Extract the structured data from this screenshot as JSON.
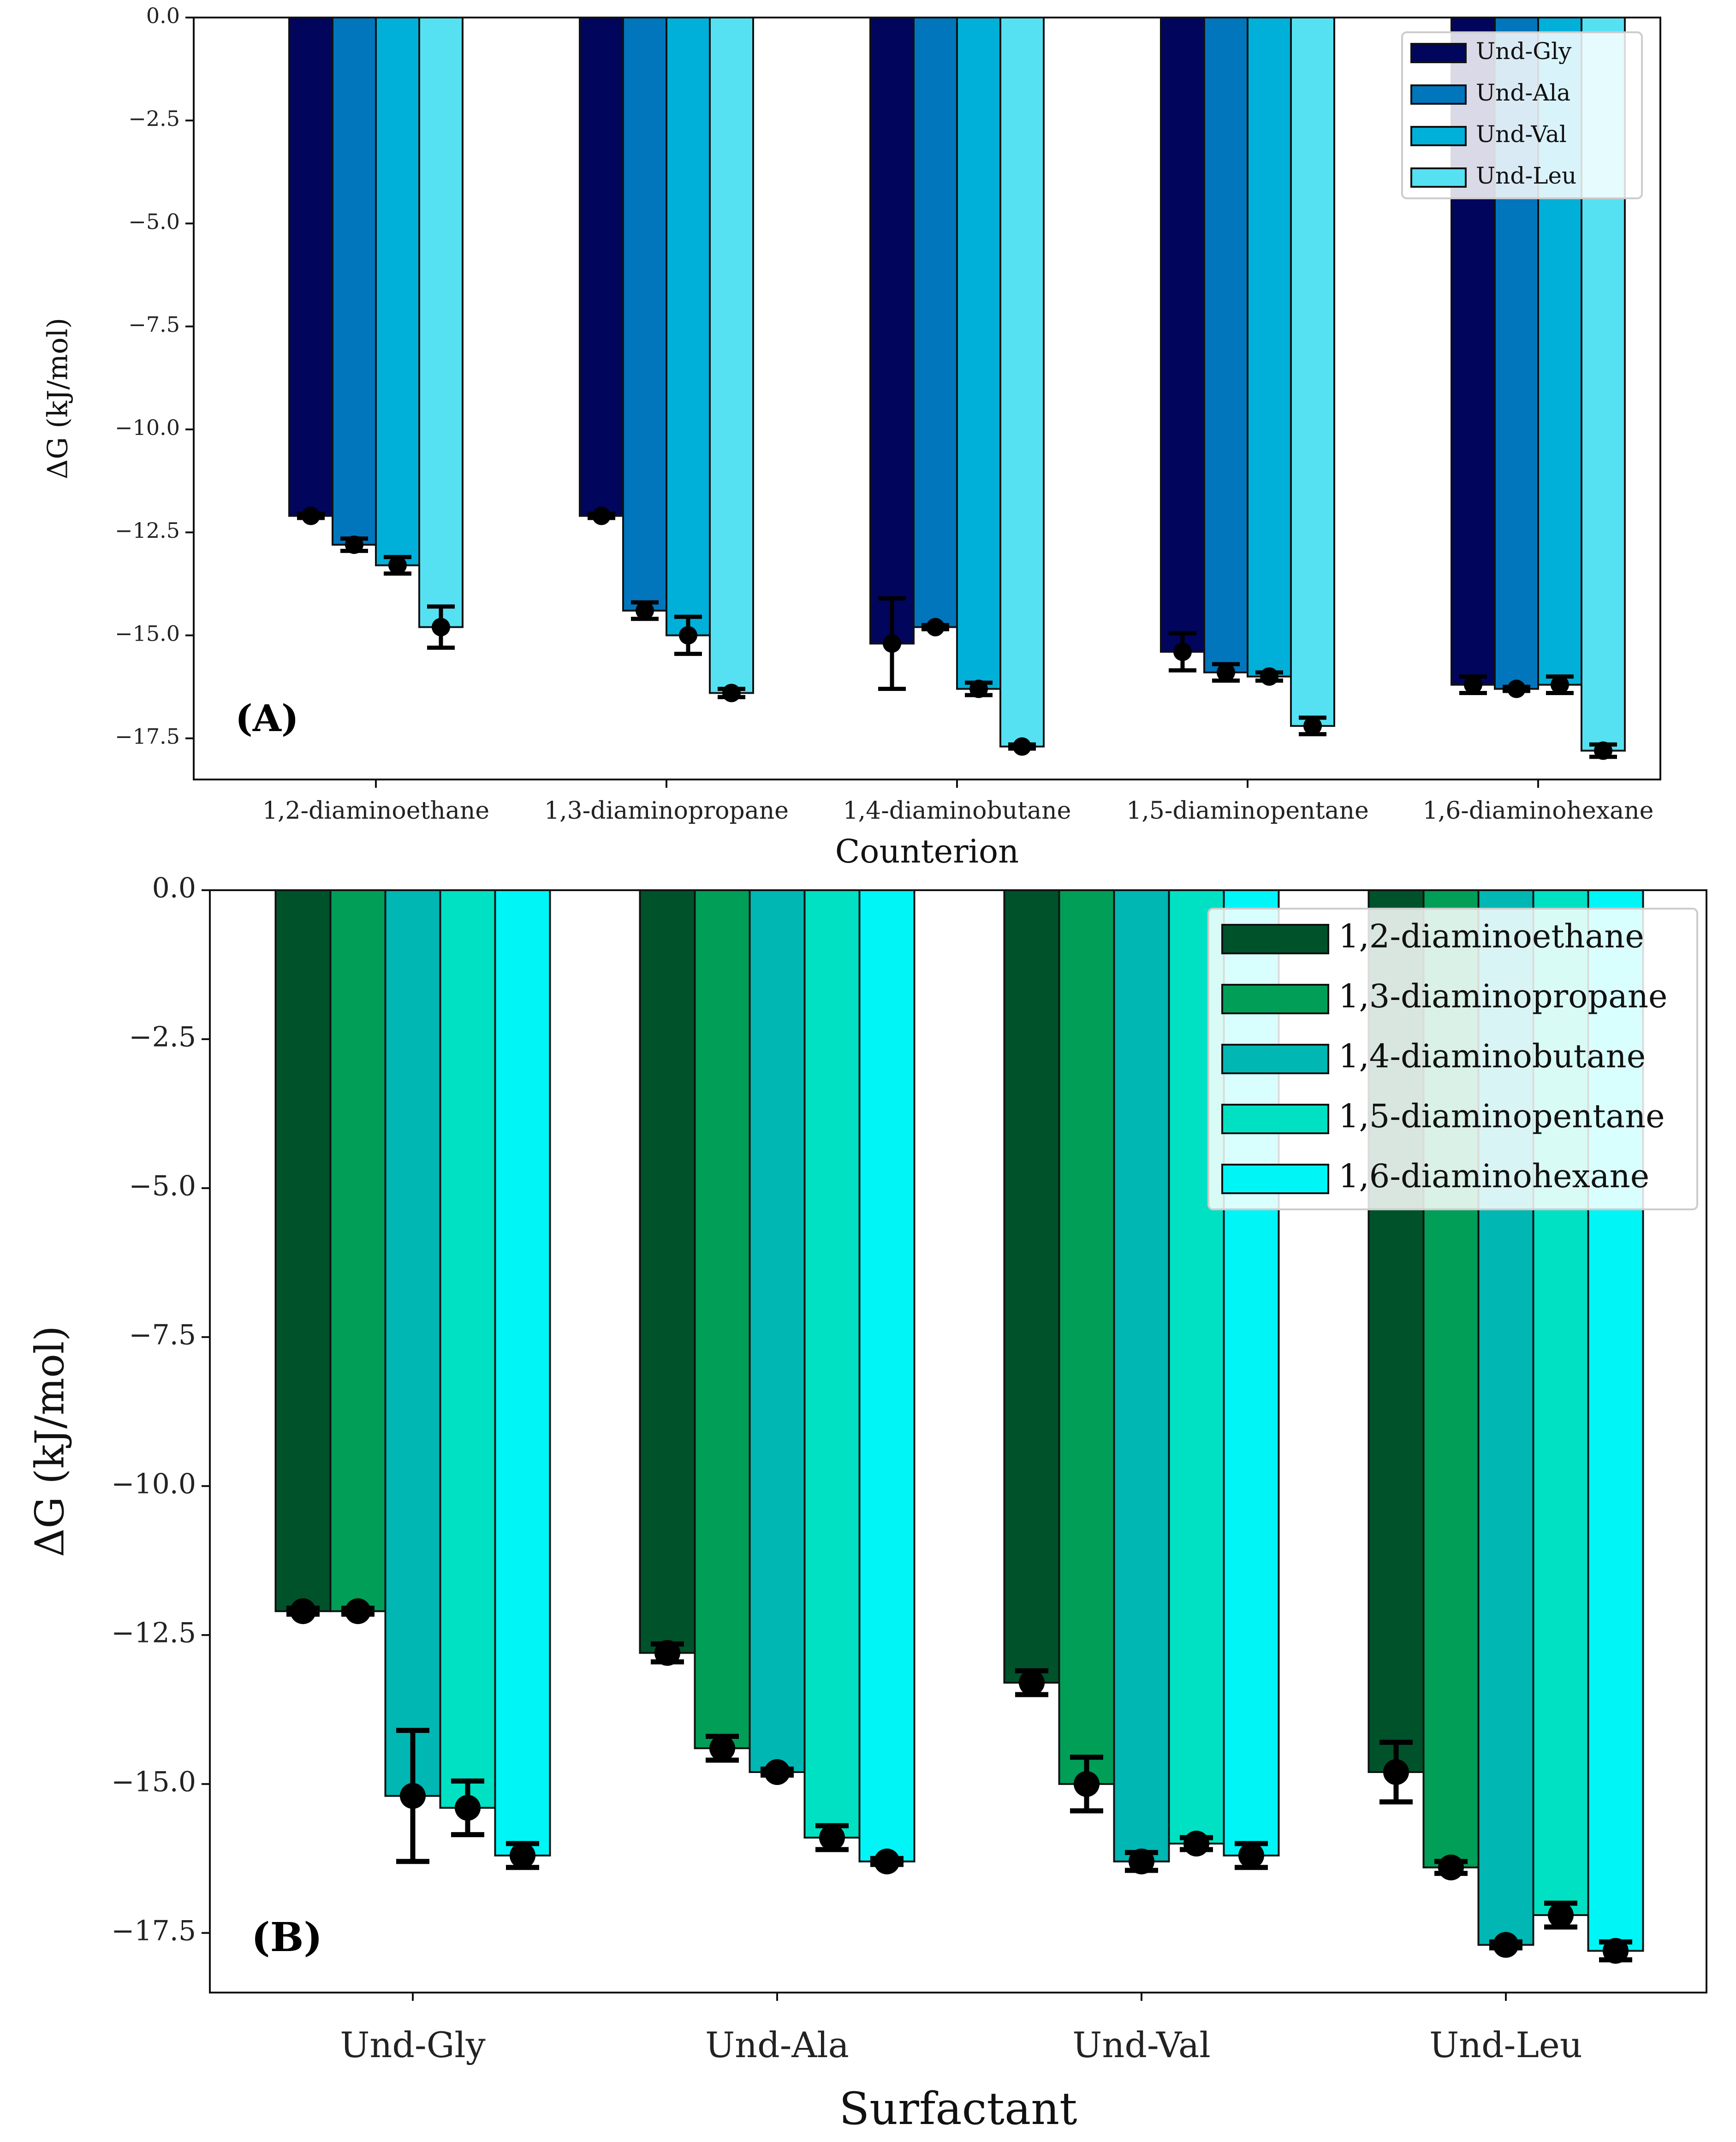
{
  "chart_data": [
    {
      "type": "bar",
      "panel_label": "(A)",
      "xlabel": "Counterion",
      "ylabel": "ΔG (kJ/mol)",
      "ylim": [
        -18.5,
        0.0
      ],
      "yticks": [
        0.0,
        -2.5,
        -5.0,
        -7.5,
        -10.0,
        -12.5,
        -15.0,
        -17.5
      ],
      "ytick_labels": [
        "0.0",
        "−2.5",
        "−5.0",
        "−7.5",
        "−10.0",
        "−12.5",
        "−15.0",
        "−17.5"
      ],
      "categories": [
        "1,2-diaminoethane",
        "1,3-diaminopropane",
        "1,4-diaminobutane",
        "1,5-diaminopentane",
        "1,6-diaminohexane"
      ],
      "legend_position": "top-right",
      "series": [
        {
          "name": "Und-Gly",
          "color": "#01055c",
          "values": [
            -12.1,
            -12.1,
            -15.2,
            -15.4,
            -16.2
          ],
          "errors": [
            0.05,
            0.05,
            1.1,
            0.45,
            0.2
          ]
        },
        {
          "name": "Und-Ala",
          "color": "#0176bd",
          "values": [
            -12.8,
            -14.4,
            -14.8,
            -15.9,
            -16.3
          ],
          "errors": [
            0.15,
            0.2,
            0.05,
            0.2,
            0.05
          ]
        },
        {
          "name": "Und-Val",
          "color": "#00b0d9",
          "values": [
            -13.3,
            -15.0,
            -16.3,
            -16.0,
            -16.2
          ],
          "errors": [
            0.2,
            0.45,
            0.15,
            0.1,
            0.2
          ]
        },
        {
          "name": "Und-Leu",
          "color": "#56e1f2",
          "values": [
            -14.8,
            -16.4,
            -17.7,
            -17.2,
            -17.8
          ],
          "errors": [
            0.5,
            0.1,
            0.05,
            0.2,
            0.15
          ]
        }
      ]
    },
    {
      "type": "bar",
      "panel_label": "(B)",
      "xlabel": "Surfactant",
      "ylabel": "ΔG (kJ/mol)",
      "ylim": [
        -18.5,
        0.0
      ],
      "yticks": [
        0.0,
        -2.5,
        -5.0,
        -7.5,
        -10.0,
        -12.5,
        -15.0,
        -17.5
      ],
      "ytick_labels": [
        "0.0",
        "−2.5",
        "−5.0",
        "−7.5",
        "−10.0",
        "−12.5",
        "−15.0",
        "−17.5"
      ],
      "categories": [
        "Und-Gly",
        "Und-Ala",
        "Und-Val",
        "Und-Leu"
      ],
      "legend_position": "top-right",
      "series": [
        {
          "name": "1,2-diaminoethane",
          "color": "#00522a",
          "values": [
            -12.1,
            -12.8,
            -13.3,
            -14.8
          ],
          "errors": [
            0.05,
            0.15,
            0.2,
            0.5
          ]
        },
        {
          "name": "1,3-diaminopropane",
          "color": "#009e57",
          "values": [
            -12.1,
            -14.4,
            -15.0,
            -16.4
          ],
          "errors": [
            0.05,
            0.2,
            0.45,
            0.1
          ]
        },
        {
          "name": "1,4-diaminobutane",
          "color": "#00b7b3",
          "values": [
            -15.2,
            -14.8,
            -16.3,
            -17.7
          ],
          "errors": [
            1.1,
            0.05,
            0.15,
            0.05
          ]
        },
        {
          "name": "1,5-diaminopentane",
          "color": "#00e1c3",
          "values": [
            -15.4,
            -15.9,
            -16.0,
            -17.2
          ],
          "errors": [
            0.45,
            0.2,
            0.1,
            0.2
          ]
        },
        {
          "name": "1,6-diaminohexane",
          "color": "#00f5f7",
          "values": [
            -16.2,
            -16.3,
            -16.2,
            -17.8
          ],
          "errors": [
            0.2,
            0.05,
            0.2,
            0.15
          ]
        }
      ]
    }
  ]
}
